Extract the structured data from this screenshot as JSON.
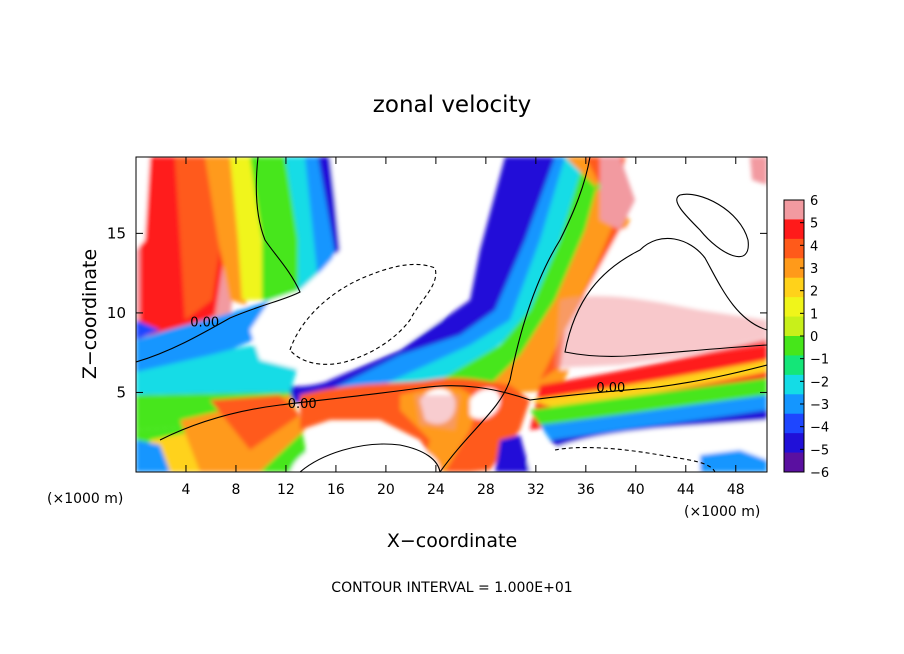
{
  "chart_data": {
    "type": "heatmap",
    "title": "zonal velocity",
    "xlabel": "X−coordinate",
    "ylabel": "Z−coordinate",
    "x_unit_left": "(×1000 m)",
    "x_unit_right": "(×1000 m)",
    "footer": "CONTOUR INTERVAL = 1.000E+01",
    "xlim": [
      0,
      50.5
    ],
    "ylim": [
      0,
      19.8
    ],
    "xticks": [
      4,
      8,
      12,
      16,
      20,
      24,
      28,
      32,
      36,
      40,
      44,
      48
    ],
    "yticks": [
      5,
      10,
      15
    ],
    "contour_labels": [
      {
        "text": "0.00",
        "x": 5.5,
        "y": 9.2
      },
      {
        "text": "0.00",
        "x": 13.3,
        "y": 4.1
      },
      {
        "text": "0.00",
        "x": 38.0,
        "y": 5.1
      }
    ],
    "colorbar": {
      "ticks": [
        "6",
        "5",
        "4",
        "3",
        "2",
        "1",
        "0",
        "−1",
        "−2",
        "−3",
        "−4",
        "−5",
        "−6"
      ],
      "colors": [
        "#f29aa0",
        "#ff1a1a",
        "#ff5a1a",
        "#ff9a1a",
        "#ffd21a",
        "#f0f51a",
        "#c8f01a",
        "#46e61a",
        "#14e678",
        "#14dce6",
        "#1496ff",
        "#1e46ff",
        "#2010d8",
        "#5a10a0"
      ]
    }
  }
}
